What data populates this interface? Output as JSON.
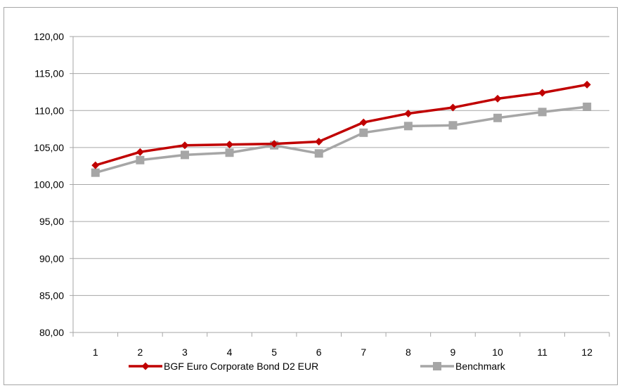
{
  "chart_data": {
    "type": "line",
    "categories": [
      "1",
      "2",
      "3",
      "4",
      "5",
      "6",
      "7",
      "8",
      "9",
      "10",
      "11",
      "12"
    ],
    "ylim": [
      80,
      120
    ],
    "yticks": [
      "80,00",
      "85,00",
      "90,00",
      "95,00",
      "100,00",
      "105,00",
      "110,00",
      "115,00",
      "120,00"
    ],
    "grid": true,
    "legend_position": "bottom",
    "series": [
      {
        "name": "BGF Euro Corporate Bond D2 EUR",
        "color": "#c00000",
        "marker": "diamond",
        "values": [
          102.6,
          104.4,
          105.3,
          105.4,
          105.5,
          105.8,
          108.4,
          109.6,
          110.4,
          111.6,
          112.4,
          113.5
        ]
      },
      {
        "name": "Benchmark",
        "color": "#a6a6a6",
        "marker": "square",
        "values": [
          101.6,
          103.3,
          104.0,
          104.3,
          105.3,
          104.2,
          107.0,
          107.9,
          108.0,
          109.0,
          109.8,
          110.5
        ]
      }
    ]
  }
}
